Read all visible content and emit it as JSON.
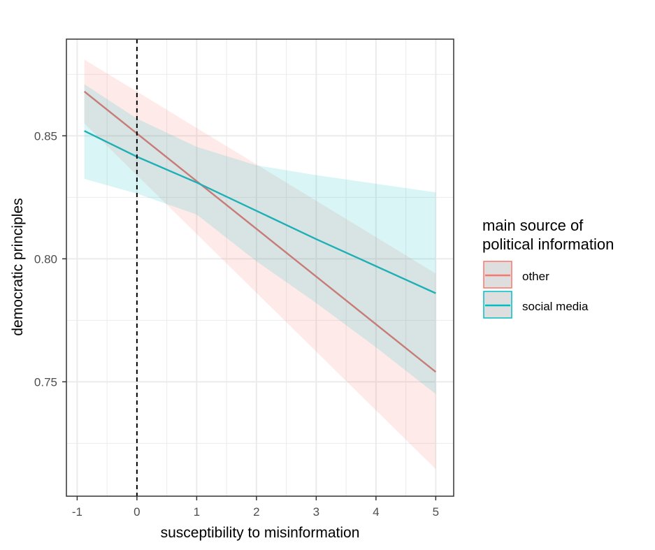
{
  "chart_data": {
    "type": "line",
    "title": "",
    "xlabel": "susceptibility to misinformation",
    "ylabel": "democratic principles",
    "xlim": [
      -1.18,
      5.3
    ],
    "ylim": [
      0.7035,
      0.8893
    ],
    "x_ticks": [
      -1,
      0,
      1,
      2,
      3,
      4,
      5
    ],
    "x_tick_labels": [
      "-1",
      "0",
      "1",
      "2",
      "3",
      "4",
      "5"
    ],
    "y_ticks": [
      0.75,
      0.8,
      0.85
    ],
    "y_tick_labels": [
      "0.75",
      "0.80",
      "0.85"
    ],
    "y_minor_gridlines": [
      0.725,
      0.775,
      0.825,
      0.875
    ],
    "x_minor_gridlines": [
      -0.5,
      0.5,
      1.5,
      2.5,
      3.5,
      4.5
    ],
    "grid": true,
    "reference_line": {
      "x": 0,
      "style": "dashed",
      "color": "#000000"
    },
    "legend": {
      "title_lines": [
        "main source of",
        "political information"
      ],
      "position": "right"
    },
    "series": [
      {
        "name": "other",
        "color": "#c77c78",
        "legend_color": "#f8766d",
        "fill": "#f8766d",
        "x": [
          -0.88,
          5
        ],
        "y": [
          0.868,
          0.754
        ],
        "ci_lower": [
          0.855,
          0.7145
        ],
        "ci_upper": [
          0.881,
          0.794
        ]
      },
      {
        "name": "social media",
        "color": "#1fb0b5",
        "legend_color": "#00bfc4",
        "fill": "#00bfc4",
        "x": [
          -0.88,
          0,
          1,
          2,
          3,
          4,
          5
        ],
        "y": [
          0.852,
          0.8415,
          0.831,
          0.8195,
          0.808,
          0.797,
          0.786
        ],
        "ci_lower": [
          0.8325,
          0.8265,
          0.818,
          0.799,
          0.782,
          0.764,
          0.745
        ],
        "ci_upper": [
          0.871,
          0.857,
          0.8455,
          0.838,
          0.834,
          0.8305,
          0.827
        ]
      }
    ]
  }
}
